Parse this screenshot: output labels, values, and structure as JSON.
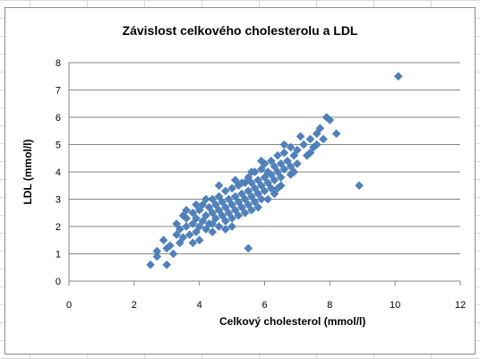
{
  "chart_data": {
    "type": "scatter",
    "title": "Závislost celkového cholesterolu a LDL",
    "xlabel": "Celkový cholesterol  (mmol/l)",
    "ylabel": "LDL (mmol/l)",
    "xlim": [
      0,
      12
    ],
    "ylim": [
      0,
      8
    ],
    "xticks": [
      "0",
      "2",
      "4",
      "6",
      "8",
      "10",
      "12"
    ],
    "yticks": [
      "0",
      "1",
      "2",
      "3",
      "4",
      "5",
      "6",
      "7",
      "8"
    ],
    "grid": "horizontal",
    "legend": "none",
    "marker_color": "#4f81bd",
    "series": [
      {
        "points": [
          [
            2.5,
            0.6
          ],
          [
            2.7,
            0.9
          ],
          [
            2.7,
            1.1
          ],
          [
            3.0,
            0.6
          ],
          [
            3.0,
            1.2
          ],
          [
            3.2,
            1.0
          ],
          [
            3.4,
            1.4
          ],
          [
            3.3,
            1.7
          ],
          [
            3.4,
            1.9
          ],
          [
            3.5,
            1.6
          ],
          [
            3.6,
            2.0
          ],
          [
            3.6,
            2.3
          ],
          [
            3.7,
            1.7
          ],
          [
            3.8,
            2.1
          ],
          [
            3.8,
            2.5
          ],
          [
            3.9,
            1.8
          ],
          [
            3.9,
            2.3
          ],
          [
            4.0,
            2.0
          ],
          [
            4.0,
            2.6
          ],
          [
            4.0,
            1.5
          ],
          [
            4.1,
            2.2
          ],
          [
            4.1,
            2.8
          ],
          [
            4.2,
            1.9
          ],
          [
            4.2,
            2.4
          ],
          [
            4.3,
            2.7
          ],
          [
            4.3,
            2.1
          ],
          [
            4.4,
            2.5
          ],
          [
            4.4,
            3.0
          ],
          [
            4.4,
            1.8
          ],
          [
            4.5,
            2.3
          ],
          [
            4.5,
            2.8
          ],
          [
            4.6,
            2.0
          ],
          [
            4.6,
            2.6
          ],
          [
            4.6,
            3.1
          ],
          [
            4.7,
            2.4
          ],
          [
            4.7,
            2.9
          ],
          [
            4.8,
            2.2
          ],
          [
            4.8,
            2.7
          ],
          [
            4.8,
            3.3
          ],
          [
            4.9,
            2.5
          ],
          [
            4.9,
            3.0
          ],
          [
            5.0,
            2.8
          ],
          [
            5.0,
            3.4
          ],
          [
            5.0,
            2.3
          ],
          [
            5.1,
            2.6
          ],
          [
            5.1,
            3.1
          ],
          [
            5.2,
            2.9
          ],
          [
            5.2,
            3.5
          ],
          [
            5.2,
            2.4
          ],
          [
            5.3,
            2.7
          ],
          [
            5.3,
            3.2
          ],
          [
            5.4,
            3.0
          ],
          [
            5.4,
            3.6
          ],
          [
            5.4,
            2.5
          ],
          [
            5.5,
            2.8
          ],
          [
            5.5,
            3.3
          ],
          [
            5.5,
            3.8
          ],
          [
            5.6,
            3.1
          ],
          [
            5.6,
            3.6
          ],
          [
            5.6,
            2.6
          ],
          [
            5.7,
            2.9
          ],
          [
            5.7,
            3.4
          ],
          [
            5.7,
            4.0
          ],
          [
            5.8,
            3.2
          ],
          [
            5.8,
            3.7
          ],
          [
            5.8,
            2.7
          ],
          [
            5.9,
            3.5
          ],
          [
            5.9,
            4.1
          ],
          [
            5.9,
            3.0
          ],
          [
            6.0,
            3.3
          ],
          [
            6.0,
            3.8
          ],
          [
            6.0,
            4.3
          ],
          [
            6.1,
            3.6
          ],
          [
            6.1,
            4.0
          ],
          [
            6.2,
            3.4
          ],
          [
            6.2,
            3.9
          ],
          [
            6.2,
            4.4
          ],
          [
            6.3,
            3.7
          ],
          [
            6.3,
            4.2
          ],
          [
            6.3,
            3.2
          ],
          [
            6.4,
            4.0
          ],
          [
            6.4,
            4.6
          ],
          [
            6.5,
            3.8
          ],
          [
            6.5,
            4.3
          ],
          [
            6.6,
            4.1
          ],
          [
            6.6,
            4.7
          ],
          [
            6.7,
            4.4
          ],
          [
            6.8,
            4.2
          ],
          [
            6.8,
            4.9
          ],
          [
            6.9,
            4.6
          ],
          [
            7.0,
            4.8
          ],
          [
            7.0,
            4.3
          ],
          [
            7.2,
            5.0
          ],
          [
            7.3,
            4.6
          ],
          [
            7.4,
            5.2
          ],
          [
            7.5,
            4.9
          ],
          [
            7.6,
            5.4
          ],
          [
            7.7,
            5.6
          ],
          [
            7.8,
            5.2
          ],
          [
            7.9,
            6.0
          ],
          [
            8.0,
            5.9
          ],
          [
            8.2,
            5.4
          ],
          [
            7.4,
            4.7
          ],
          [
            6.6,
            5.0
          ],
          [
            7.1,
            5.3
          ],
          [
            6.5,
            3.5
          ],
          [
            5.5,
            1.2
          ],
          [
            5.0,
            2.0
          ],
          [
            4.8,
            1.9
          ],
          [
            4.4,
            2.1
          ],
          [
            3.9,
            2.8
          ],
          [
            3.5,
            2.4
          ],
          [
            3.1,
            1.3
          ],
          [
            3.8,
            1.4
          ],
          [
            5.3,
            3.6
          ],
          [
            5.6,
            4.0
          ],
          [
            6.1,
            3.0
          ],
          [
            6.8,
            3.9
          ],
          [
            7.6,
            5.0
          ],
          [
            8.9,
            3.5
          ],
          [
            10.1,
            7.5
          ],
          [
            4.6,
            3.5
          ],
          [
            5.9,
            4.4
          ],
          [
            6.4,
            3.4
          ],
          [
            5.1,
            3.7
          ],
          [
            4.2,
            3.0
          ],
          [
            3.6,
            2.6
          ],
          [
            3.3,
            2.1
          ],
          [
            2.9,
            1.5
          ],
          [
            6.9,
            4.0
          ]
        ]
      }
    ]
  }
}
